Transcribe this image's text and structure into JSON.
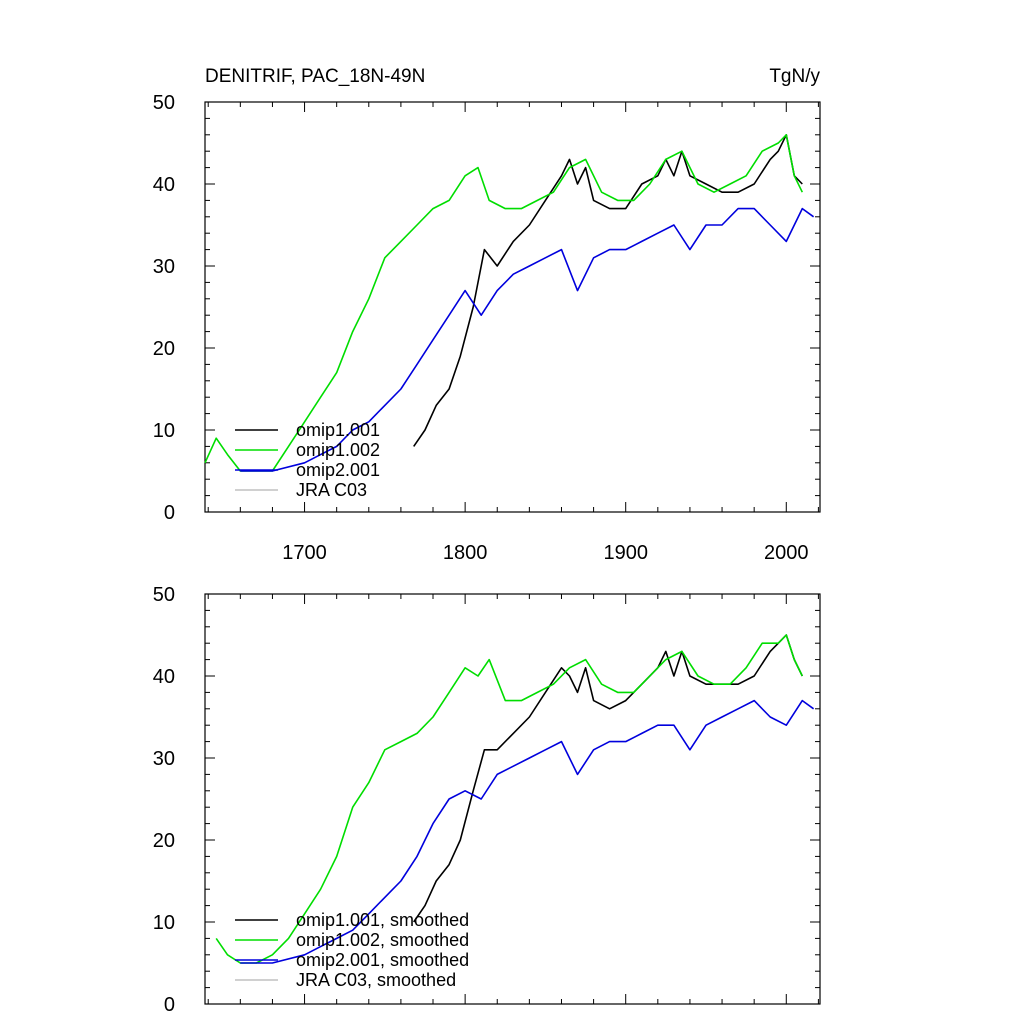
{
  "chart_data": [
    {
      "type": "line",
      "title": "DENITRIF, PAC_18N-49N",
      "units": "TgN/y",
      "xlim": [
        1638,
        2021
      ],
      "ylim": [
        0,
        50
      ],
      "xticks": [
        1700,
        1800,
        1900,
        2000
      ],
      "xtick_labels": [
        "1700",
        "1800",
        "1900",
        "2000"
      ],
      "yticks": [
        0,
        10,
        20,
        30,
        40,
        50
      ],
      "ytick_labels": [
        "0",
        "10",
        "20",
        "30",
        "40",
        "50"
      ],
      "legend": [
        "omip1.001",
        "omip1.002",
        "omip2.001",
        "JRA C03"
      ],
      "series": [
        {
          "name": "omip1.001",
          "color": "#000000",
          "x": [
            1768,
            1775,
            1782,
            1790,
            1797,
            1805,
            1812,
            1820,
            1830,
            1840,
            1850,
            1860,
            1865,
            1870,
            1875,
            1880,
            1890,
            1900,
            1910,
            1920,
            1925,
            1930,
            1935,
            1940,
            1950,
            1960,
            1970,
            1980,
            1990,
            1995,
            2000,
            2005,
            2010
          ],
          "y": [
            8,
            10,
            13,
            15,
            19,
            25,
            32,
            30,
            33,
            35,
            38,
            41,
            43,
            40,
            42,
            38,
            37,
            37,
            40,
            41,
            43,
            41,
            44,
            41,
            40,
            39,
            39,
            40,
            43,
            44,
            46,
            41,
            40
          ]
        },
        {
          "name": "omip1.002",
          "color": "#00dd00",
          "x": [
            1638,
            1645,
            1652,
            1660,
            1670,
            1680,
            1690,
            1700,
            1710,
            1720,
            1730,
            1740,
            1750,
            1760,
            1770,
            1780,
            1790,
            1800,
            1808,
            1815,
            1825,
            1835,
            1845,
            1855,
            1865,
            1875,
            1885,
            1895,
            1905,
            1915,
            1925,
            1935,
            1945,
            1955,
            1965,
            1975,
            1985,
            1995,
            2000,
            2005,
            2010
          ],
          "y": [
            6,
            9,
            7,
            5,
            5,
            5,
            8,
            11,
            14,
            17,
            22,
            26,
            31,
            33,
            35,
            37,
            38,
            41,
            42,
            38,
            37,
            37,
            38,
            39,
            42,
            43,
            39,
            38,
            38,
            40,
            43,
            44,
            40,
            39,
            40,
            41,
            44,
            45,
            46,
            41,
            39
          ]
        },
        {
          "name": "omip2.001",
          "color": "#0000dd",
          "x": [
            1660,
            1680,
            1700,
            1710,
            1720,
            1730,
            1740,
            1750,
            1760,
            1770,
            1780,
            1790,
            1800,
            1810,
            1820,
            1830,
            1840,
            1850,
            1860,
            1870,
            1880,
            1890,
            1900,
            1910,
            1920,
            1930,
            1940,
            1950,
            1960,
            1970,
            1980,
            1990,
            2000,
            2010,
            2017
          ],
          "y": [
            5,
            5,
            6,
            7,
            8,
            10,
            11,
            13,
            15,
            18,
            21,
            24,
            27,
            24,
            27,
            29,
            30,
            31,
            32,
            27,
            31,
            32,
            32,
            33,
            34,
            35,
            32,
            35,
            35,
            37,
            37,
            35,
            33,
            37,
            36
          ]
        },
        {
          "name": "JRA C03",
          "color": "#c0c0c0",
          "x": [],
          "y": []
        }
      ]
    },
    {
      "type": "line",
      "title": "",
      "xlim": [
        1638,
        2021
      ],
      "ylim": [
        0,
        50
      ],
      "xticks": [
        1700,
        1800,
        1900,
        2000
      ],
      "yticks": [
        0,
        10,
        20,
        30,
        40,
        50
      ],
      "ytick_labels": [
        "0",
        "10",
        "20",
        "30",
        "40",
        "50"
      ],
      "legend": [
        "omip1.001, smoothed",
        "omip1.002, smoothed",
        "omip2.001, smoothed",
        "JRA C03, smoothed"
      ],
      "series": [
        {
          "name": "omip1.001, smoothed",
          "color": "#000000",
          "x": [
            1768,
            1775,
            1782,
            1790,
            1797,
            1805,
            1812,
            1820,
            1830,
            1840,
            1850,
            1860,
            1865,
            1870,
            1875,
            1880,
            1890,
            1900,
            1910,
            1920,
            1925,
            1930,
            1935,
            1940,
            1950,
            1960,
            1970,
            1980,
            1990,
            1995,
            2000,
            2005,
            2010
          ],
          "y": [
            10,
            12,
            15,
            17,
            20,
            26,
            31,
            31,
            33,
            35,
            38,
            41,
            40,
            38,
            41,
            37,
            36,
            37,
            39,
            41,
            43,
            40,
            43,
            40,
            39,
            39,
            39,
            40,
            43,
            44,
            45,
            42,
            40
          ]
        },
        {
          "name": "omip1.002, smoothed",
          "color": "#00dd00",
          "x": [
            1645,
            1652,
            1660,
            1670,
            1680,
            1690,
            1700,
            1710,
            1720,
            1730,
            1740,
            1750,
            1760,
            1770,
            1780,
            1790,
            1800,
            1808,
            1815,
            1825,
            1835,
            1845,
            1855,
            1865,
            1875,
            1885,
            1895,
            1905,
            1915,
            1925,
            1935,
            1945,
            1955,
            1965,
            1975,
            1985,
            1995,
            2000,
            2005,
            2010
          ],
          "y": [
            8,
            6,
            5,
            5,
            6,
            8,
            11,
            14,
            18,
            24,
            27,
            31,
            32,
            33,
            35,
            38,
            41,
            40,
            42,
            37,
            37,
            38,
            39,
            41,
            42,
            39,
            38,
            38,
            40,
            42,
            43,
            40,
            39,
            39,
            41,
            44,
            44,
            45,
            42,
            40
          ]
        },
        {
          "name": "omip2.001, smoothed",
          "color": "#0000dd",
          "x": [
            1660,
            1680,
            1700,
            1710,
            1720,
            1730,
            1740,
            1750,
            1760,
            1770,
            1780,
            1790,
            1800,
            1810,
            1820,
            1830,
            1840,
            1850,
            1860,
            1870,
            1880,
            1890,
            1900,
            1910,
            1920,
            1930,
            1940,
            1950,
            1960,
            1970,
            1980,
            1990,
            2000,
            2010,
            2017
          ],
          "y": [
            5,
            5,
            6,
            7,
            8,
            9,
            11,
            13,
            15,
            18,
            22,
            25,
            26,
            25,
            28,
            29,
            30,
            31,
            32,
            28,
            31,
            32,
            32,
            33,
            34,
            34,
            31,
            34,
            35,
            36,
            37,
            35,
            34,
            37,
            36
          ]
        },
        {
          "name": "JRA C03, smoothed",
          "color": "#c0c0c0",
          "x": [],
          "y": []
        }
      ]
    }
  ]
}
